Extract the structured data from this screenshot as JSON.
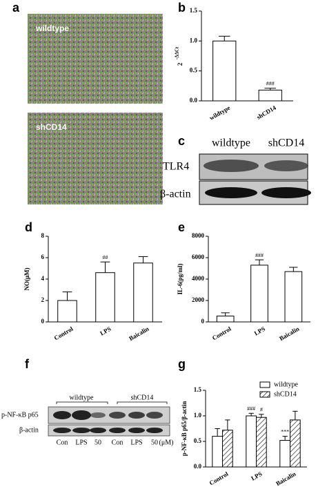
{
  "panel_labels": [
    "a",
    "b",
    "c",
    "d",
    "e",
    "f",
    "g"
  ],
  "images": {
    "a": {
      "labels": [
        "wildtype",
        "shCD14"
      ]
    },
    "c": {
      "columns": [
        "wildtype",
        "shCD14"
      ],
      "rows": [
        "TLR4",
        "β-actin"
      ]
    },
    "f": {
      "groups": [
        "wildtype",
        "shCD14"
      ],
      "rows": [
        "p-NF-κB p65",
        "β-actin"
      ],
      "lanes": [
        "Con",
        "LPS",
        "50",
        "Con",
        "LPS",
        "50"
      ],
      "unit": "(μM)"
    }
  },
  "chart_data": [
    {
      "type": "bar",
      "y_label": "2",
      "y_label_sup": "-ΔΔCt",
      "categories": [
        "wildtype",
        "shCD14"
      ],
      "values": [
        1.0,
        0.18
      ],
      "errors": [
        0.08,
        0.03
      ],
      "annotations": [
        null,
        "###"
      ],
      "color": "#ffffff",
      "ylim": [
        0,
        1.5
      ],
      "yticks": [
        {
          "value": 0,
          "label": "0.0"
        },
        0.5,
        {
          "value": 1,
          "label": "1.0"
        },
        1.5
      ]
    },
    {
      "type": "bar",
      "y_label": "NO(μM)",
      "categories": [
        "Control",
        "LPS",
        "Baicalin"
      ],
      "values": [
        2.0,
        4.6,
        5.5
      ],
      "errors": [
        0.8,
        1.0,
        0.6
      ],
      "annotations": [
        null,
        "##",
        null
      ],
      "color": "#ffffff",
      "ylim": [
        0,
        8
      ],
      "yticks": [
        0,
        2,
        4,
        6,
        8
      ]
    },
    {
      "type": "bar",
      "y_label": "IL-6(pg/ml)",
      "categories": [
        "Control",
        "LPS",
        "Baicalin"
      ],
      "values": [
        550,
        5300,
        4700
      ],
      "errors": [
        300,
        500,
        400
      ],
      "annotations": [
        null,
        "###",
        null
      ],
      "color": "#ffffff",
      "ylim": [
        0,
        8000
      ],
      "yticks": [
        0,
        2000,
        4000,
        6000,
        8000
      ]
    },
    {
      "type": "grouped_bar",
      "y_label": "p-NF-κB p65/β-actin",
      "categories": [
        "Control",
        "LPS",
        "Baicalin"
      ],
      "series": [
        {
          "name": "wildtype",
          "color": "#ffffff",
          "pattern": "solid",
          "values": [
            0.6,
            1.0,
            0.52
          ],
          "errors": [
            0.15,
            0.05,
            0.08
          ],
          "annotations": [
            null,
            "###",
            "***"
          ]
        },
        {
          "name": "shCD14",
          "color": "#ffffff",
          "pattern": "hatch",
          "values": [
            0.72,
            0.97,
            0.92
          ],
          "errors": [
            0.2,
            0.06,
            0.17
          ],
          "annotations": [
            null,
            "#",
            null
          ]
        }
      ],
      "legend": "top-right",
      "ylim": [
        0,
        1.5
      ],
      "yticks": [
        {
          "value": 0,
          "label": "0.0"
        },
        0.5,
        {
          "value": 1,
          "label": "1.0"
        },
        1.5
      ]
    }
  ]
}
